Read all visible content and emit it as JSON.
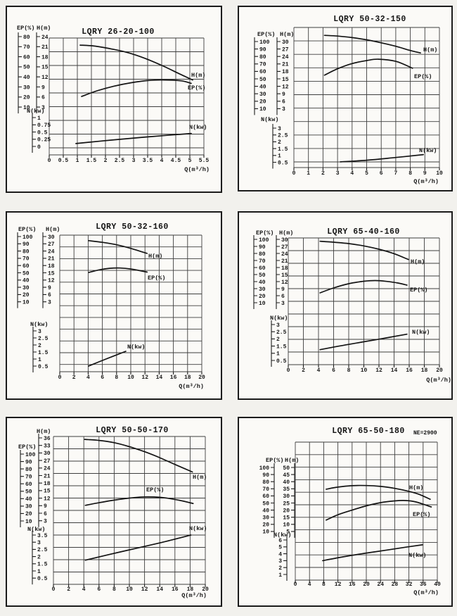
{
  "chart_data": [
    {
      "type": "line",
      "title": "LQRY 26-20-100",
      "x_axis": {
        "label": "Q(m³/h)",
        "ticks": [
          0,
          0.5,
          1,
          1.5,
          2,
          2.5,
          3,
          3.5,
          4,
          4.5,
          5,
          5.5
        ],
        "range": [
          0,
          5.5
        ]
      },
      "y_axes": {
        "ep": {
          "header": "EP(%)",
          "ticks": [
            80,
            70,
            60,
            50,
            40,
            30,
            20,
            10
          ]
        },
        "h": {
          "header": "H(m)",
          "ticks": [
            24,
            21,
            18,
            15,
            12,
            9,
            6,
            3
          ]
        },
        "n": {
          "header": "N(kw)",
          "ticks": [
            1,
            0.75,
            0.5,
            0.25,
            0
          ]
        }
      },
      "series": [
        {
          "id": "h",
          "name": "H(m)",
          "unit": "m",
          "points": [
            [
              1.1,
              22.2
            ],
            [
              1.6,
              22.0
            ],
            [
              2.2,
              21.4
            ],
            [
              2.8,
              20.6
            ],
            [
              3.4,
              19.4
            ],
            [
              4.0,
              17.9
            ],
            [
              4.6,
              16.2
            ],
            [
              5.1,
              14.8
            ]
          ]
        },
        {
          "id": "ep",
          "name": "EP(%)",
          "unit": "%",
          "points": [
            [
              1.15,
              37.5
            ],
            [
              1.7,
              41.5
            ],
            [
              2.3,
              44.8
            ],
            [
              2.9,
              47.2
            ],
            [
              3.5,
              48.8
            ],
            [
              4.1,
              49.2
            ],
            [
              4.7,
              48.6
            ],
            [
              5.05,
              46.8
            ]
          ]
        },
        {
          "id": "n",
          "name": "N(kw)",
          "unit": "kw",
          "points": [
            [
              0.95,
              0.1
            ],
            [
              2.2,
              0.22
            ],
            [
              3.6,
              0.34
            ],
            [
              5.05,
              0.45
            ]
          ]
        }
      ]
    },
    {
      "type": "line",
      "title": "LQRY 50-32-150",
      "x_axis": {
        "label": "Q(m³/h)",
        "ticks": [
          0,
          1,
          2,
          3,
          4,
          5,
          6,
          7,
          8,
          9,
          10
        ],
        "range": [
          0,
          10
        ]
      },
      "y_axes": {
        "ep": {
          "header": "EP(%)",
          "ticks": [
            100,
            90,
            80,
            70,
            60,
            50,
            40,
            30,
            20,
            10
          ]
        },
        "h": {
          "header": "H(m)",
          "ticks": [
            30,
            27,
            24,
            21,
            18,
            15,
            12,
            9,
            6,
            3
          ]
        },
        "n": {
          "header": "N(kw)",
          "ticks": [
            3,
            2.5,
            2,
            1.5,
            1,
            0.5
          ]
        }
      },
      "series": [
        {
          "id": "h",
          "name": "H(m)",
          "unit": "m",
          "points": [
            [
              2.1,
              32.5
            ],
            [
              3,
              32.2
            ],
            [
              4,
              31.6
            ],
            [
              5,
              30.7
            ],
            [
              6,
              29.5
            ],
            [
              7,
              28.1
            ],
            [
              8,
              26.4
            ],
            [
              8.7,
              25.4
            ]
          ]
        },
        {
          "id": "ep",
          "name": "EP(%)",
          "unit": "%",
          "points": [
            [
              2.1,
              54.9
            ],
            [
              3,
              63.5
            ],
            [
              4,
              70.5
            ],
            [
              5,
              74.5
            ],
            [
              5.8,
              76.3
            ],
            [
              7,
              73.5
            ],
            [
              8.15,
              64.2
            ]
          ]
        },
        {
          "id": "n",
          "name": "N(kw)",
          "unit": "kw",
          "points": [
            [
              3.2,
              0.53
            ],
            [
              5,
              0.65
            ],
            [
              7,
              0.85
            ],
            [
              8.9,
              1.06
            ]
          ]
        }
      ]
    },
    {
      "type": "line",
      "title": "LQRY 50-32-160",
      "x_axis": {
        "label": "Q(m³/h)",
        "ticks": [
          0,
          2,
          4,
          6,
          8,
          10,
          12,
          14,
          16,
          18,
          20
        ],
        "range": [
          0,
          20
        ]
      },
      "y_axes": {
        "ep": {
          "header": "EP(%)",
          "ticks": [
            100,
            90,
            80,
            70,
            60,
            50,
            40,
            30,
            20,
            10
          ]
        },
        "h": {
          "header": "H(m)",
          "ticks": [
            30,
            27,
            24,
            21,
            18,
            15,
            12,
            9,
            6,
            3
          ]
        },
        "n": {
          "header": "N(kw)",
          "ticks": [
            3,
            2.5,
            2,
            1.5,
            1,
            0.5
          ]
        }
      },
      "series": [
        {
          "id": "h",
          "name": "H(m)",
          "unit": "m",
          "points": [
            [
              4.05,
              28.3
            ],
            [
              6,
              27.6
            ],
            [
              8,
              26.6
            ],
            [
              10,
              25.1
            ],
            [
              12.3,
              23.0
            ]
          ]
        },
        {
          "id": "ep",
          "name": "EP(%)",
          "unit": "%",
          "points": [
            [
              4.1,
              50.5
            ],
            [
              5.5,
              54.0
            ],
            [
              7,
              56.2
            ],
            [
              8.5,
              56.6
            ],
            [
              10,
              55.2
            ],
            [
              12.3,
              51.0
            ]
          ]
        },
        {
          "id": "n",
          "name": "N(kw)",
          "unit": "kw",
          "points": [
            [
              4.05,
              0.5
            ],
            [
              6.5,
              1.0
            ],
            [
              9.3,
              1.55
            ]
          ]
        }
      ]
    },
    {
      "type": "line",
      "title": "LQRY 65-40-160",
      "x_axis": {
        "label": "Q(m³/h)",
        "ticks": [
          0,
          2,
          4,
          6,
          8,
          10,
          12,
          14,
          16,
          18,
          20
        ],
        "range": [
          0,
          20
        ]
      },
      "y_axes": {
        "ep": {
          "header": "EP(%)",
          "ticks": [
            100,
            90,
            80,
            70,
            60,
            50,
            40,
            30,
            20,
            10
          ]
        },
        "h": {
          "header": "H(m)",
          "ticks": [
            30,
            27,
            24,
            21,
            18,
            15,
            12,
            9,
            6,
            3
          ]
        },
        "n": {
          "header": "N(kw)",
          "ticks": [
            3,
            2.5,
            2,
            1.5,
            1,
            0.5
          ]
        }
      },
      "series": [
        {
          "id": "h",
          "name": "H(m)",
          "unit": "m",
          "points": [
            [
              4.2,
              29.2
            ],
            [
              6,
              28.8
            ],
            [
              8,
              28.2
            ],
            [
              10,
              27.2
            ],
            [
              12,
              25.8
            ],
            [
              14,
              23.9
            ],
            [
              15.9,
              21.4
            ]
          ]
        },
        {
          "id": "ep",
          "name": "EP(%)",
          "unit": "%",
          "points": [
            [
              4.2,
              24.0
            ],
            [
              6,
              31.0
            ],
            [
              8,
              37.0
            ],
            [
              10,
              40.5
            ],
            [
              11.5,
              41.5
            ],
            [
              13,
              40.3
            ],
            [
              14.5,
              38.0
            ],
            [
              15.7,
              35.0
            ]
          ]
        },
        {
          "id": "n",
          "name": "N(kw)",
          "unit": "kw",
          "points": [
            [
              4.2,
              1.25
            ],
            [
              8,
              1.62
            ],
            [
              12,
              1.98
            ],
            [
              15.7,
              2.33
            ]
          ]
        }
      ]
    },
    {
      "type": "line",
      "title": "LQRY 50-50-170",
      "x_axis": {
        "label": "Q(m³/h)",
        "ticks": [
          0,
          2,
          4,
          6,
          8,
          10,
          12,
          14,
          16,
          18,
          20
        ],
        "range": [
          0,
          20
        ]
      },
      "y_axes": {
        "ep": {
          "header": "EP(%)",
          "ticks": [
            100,
            90,
            80,
            70,
            60,
            50,
            40,
            30,
            20,
            10
          ]
        },
        "h": {
          "header": "H(m)",
          "ticks": [
            36,
            33,
            30,
            27,
            24,
            21,
            18,
            15,
            12,
            9,
            6,
            3
          ]
        },
        "n": {
          "header": "N(kw)",
          "ticks": [
            3.5,
            3,
            2.5,
            2,
            1.5,
            1,
            0.5
          ]
        }
      },
      "series": [
        {
          "id": "h",
          "name": "H(m)",
          "unit": "m",
          "points": [
            [
              4.1,
              35.4
            ],
            [
              6,
              35.0
            ],
            [
              8,
              34.1
            ],
            [
              10,
              32.5
            ],
            [
              12,
              30.5
            ],
            [
              14,
              28.1
            ],
            [
              16,
              25.4
            ],
            [
              18.3,
              22.4
            ]
          ]
        },
        {
          "id": "ep",
          "name": "EP(%)",
          "unit": "%",
          "points": [
            [
              4.2,
              31.0
            ],
            [
              6,
              34.5
            ],
            [
              8,
              38.0
            ],
            [
              10,
              40.8
            ],
            [
              12,
              42.4
            ],
            [
              14,
              41.8
            ],
            [
              16,
              39.0
            ],
            [
              18.4,
              33.5
            ]
          ]
        },
        {
          "id": "n",
          "name": "N(kw)",
          "unit": "kw",
          "points": [
            [
              4.2,
              1.75
            ],
            [
              9,
              2.35
            ],
            [
              14,
              2.95
            ],
            [
              18.1,
              3.5
            ]
          ]
        }
      ]
    },
    {
      "type": "line",
      "title": "LQRY 65-50-180",
      "ne_note": "NE=2900",
      "x_axis": {
        "label": "Q(m³/h)",
        "ticks": [
          0,
          4,
          8,
          12,
          16,
          20,
          24,
          28,
          32,
          36,
          40
        ],
        "range": [
          0,
          40
        ]
      },
      "y_axes": {
        "ep": {
          "header": "EP(%)",
          "ticks": [
            100,
            90,
            80,
            70,
            60,
            50,
            40,
            30,
            20,
            10
          ]
        },
        "h": {
          "header": "H(m)",
          "ticks": [
            50,
            45,
            40,
            35,
            30,
            25,
            20,
            15,
            10,
            5
          ]
        },
        "n": {
          "header": "N(kw)",
          "ticks": [
            6,
            5,
            4,
            3,
            2,
            1
          ]
        }
      },
      "series": [
        {
          "id": "h",
          "name": "H(m)",
          "unit": "m",
          "points": [
            [
              8.7,
              34.7
            ],
            [
              12,
              36.2
            ],
            [
              16,
              37.2
            ],
            [
              20,
              37.3
            ],
            [
              24,
              36.7
            ],
            [
              28,
              35.3
            ],
            [
              32,
              33.2
            ],
            [
              35,
              31.0
            ],
            [
              38,
              27.6
            ]
          ]
        },
        {
          "id": "ep",
          "name": "EP(%)",
          "unit": "%",
          "points": [
            [
              8.7,
              26.0
            ],
            [
              12,
              33.5
            ],
            [
              16,
              40.0
            ],
            [
              20,
              46.0
            ],
            [
              24,
              50.5
            ],
            [
              28,
              53.0
            ],
            [
              31,
              53.5
            ],
            [
              34,
              51.5
            ],
            [
              38.3,
              44.5
            ]
          ]
        },
        {
          "id": "n",
          "name": "N(kw)",
          "unit": "kw",
          "points": [
            [
              7.7,
              3.0
            ],
            [
              14,
              3.6
            ],
            [
              20,
              4.1
            ],
            [
              26,
              4.55
            ],
            [
              31,
              4.95
            ],
            [
              35.8,
              5.3
            ]
          ]
        }
      ]
    }
  ]
}
